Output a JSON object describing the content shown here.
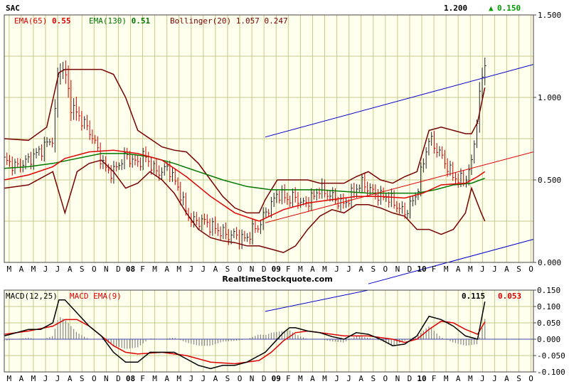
{
  "colors": {
    "panel_bg": "#FFFFEE",
    "grid": "#C8C88A",
    "border": "#444444",
    "price_bar": "#222222",
    "price_bar_down": "#CC0000",
    "ema65": "#DD0000",
    "ema130": "#007700",
    "bollinger": "#770000",
    "trend": "#0000CC",
    "macd_line": "#000000",
    "macd_signal": "#DD0000",
    "hist": "#888888",
    "up_green": "#009900"
  },
  "chart_data": [
    {
      "type": "line",
      "panel": "price",
      "ticker": "SAC",
      "last_price": "1.200",
      "change": "0.150",
      "change_direction": "up",
      "indicators": {
        "ema65": {
          "label": "EMA(65)",
          "value": "0.55"
        },
        "ema130": {
          "label": "EMA(130)",
          "value": "0.51"
        },
        "bollinger": {
          "label": "Bollinger(20)",
          "upper": "1.057",
          "lower": "0.247"
        }
      },
      "x_tick_labels": [
        "M",
        "A",
        "M",
        "J",
        "J",
        "A",
        "S",
        "O",
        "N",
        "D",
        "08",
        "F",
        "M",
        "A",
        "M",
        "J",
        "J",
        "A",
        "S",
        "O",
        "N",
        "D",
        "09",
        "F",
        "M",
        "A",
        "M",
        "J",
        "J",
        "A",
        "S",
        "O",
        "N",
        "D",
        "10",
        "F",
        "M",
        "A",
        "M",
        "J",
        "J",
        "A",
        "S",
        "O"
      ],
      "x_tick_bold": [
        "08",
        "09",
        "10"
      ],
      "y_ticks": [
        1.5,
        1.0,
        0.5,
        0.0
      ],
      "y_tick_labels": [
        "1.500",
        "1.000",
        "0.500",
        "0.000"
      ],
      "ylim": [
        0,
        1.5
      ],
      "x_range_months": [
        0,
        43.6
      ],
      "close_series": {
        "name": "Price",
        "points": [
          [
            0,
            0.62
          ],
          [
            0.5,
            0.6
          ],
          [
            1,
            0.58
          ],
          [
            1.5,
            0.6
          ],
          [
            2,
            0.62
          ],
          [
            2.5,
            0.65
          ],
          [
            3,
            0.68
          ],
          [
            3.5,
            0.72
          ],
          [
            4,
            0.75
          ],
          [
            4.5,
            1.2
          ],
          [
            5,
            1.15
          ],
          [
            5.5,
            0.95
          ],
          [
            6,
            0.9
          ],
          [
            6.5,
            0.85
          ],
          [
            7,
            0.8
          ],
          [
            7.5,
            0.72
          ],
          [
            8,
            0.62
          ],
          [
            8.5,
            0.55
          ],
          [
            9,
            0.55
          ],
          [
            9.5,
            0.6
          ],
          [
            10,
            0.65
          ],
          [
            10.5,
            0.62
          ],
          [
            11,
            0.6
          ],
          [
            11.5,
            0.65
          ],
          [
            12,
            0.6
          ],
          [
            12.5,
            0.55
          ],
          [
            13,
            0.55
          ],
          [
            13.5,
            0.58
          ],
          [
            14,
            0.5
          ],
          [
            14.5,
            0.42
          ],
          [
            15,
            0.3
          ],
          [
            15.5,
            0.25
          ],
          [
            16,
            0.25
          ],
          [
            16.5,
            0.25
          ],
          [
            17,
            0.22
          ],
          [
            17.5,
            0.2
          ],
          [
            18,
            0.18
          ],
          [
            18.5,
            0.16
          ],
          [
            19,
            0.17
          ],
          [
            19.5,
            0.14
          ],
          [
            20,
            0.15
          ],
          [
            20.5,
            0.2
          ],
          [
            21,
            0.22
          ],
          [
            21.5,
            0.3
          ],
          [
            22,
            0.35
          ],
          [
            22.5,
            0.42
          ],
          [
            23,
            0.4
          ],
          [
            23.5,
            0.38
          ],
          [
            24,
            0.4
          ],
          [
            24.5,
            0.35
          ],
          [
            25,
            0.37
          ],
          [
            25.5,
            0.4
          ],
          [
            26,
            0.45
          ],
          [
            26.5,
            0.42
          ],
          [
            27,
            0.4
          ],
          [
            27.5,
            0.37
          ],
          [
            28,
            0.35
          ],
          [
            28.5,
            0.4
          ],
          [
            29,
            0.45
          ],
          [
            29.5,
            0.48
          ],
          [
            30,
            0.45
          ],
          [
            30.5,
            0.42
          ],
          [
            31,
            0.4
          ],
          [
            31.5,
            0.4
          ],
          [
            32,
            0.37
          ],
          [
            32.5,
            0.33
          ],
          [
            33,
            0.3
          ],
          [
            33.5,
            0.35
          ],
          [
            34,
            0.42
          ],
          [
            34.5,
            0.6
          ],
          [
            35,
            0.75
          ],
          [
            35.5,
            0.7
          ],
          [
            36,
            0.65
          ],
          [
            36.5,
            0.58
          ],
          [
            37,
            0.52
          ],
          [
            37.5,
            0.5
          ],
          [
            38,
            0.5
          ],
          [
            38.5,
            0.6
          ],
          [
            39,
            0.9
          ],
          [
            39.3,
            1.1
          ],
          [
            39.6,
            1.2
          ]
        ]
      },
      "ema65_points": [
        [
          0,
          0.5
        ],
        [
          2,
          0.53
        ],
        [
          4,
          0.58
        ],
        [
          5,
          0.63
        ],
        [
          7,
          0.67
        ],
        [
          9,
          0.68
        ],
        [
          11,
          0.66
        ],
        [
          13,
          0.62
        ],
        [
          15,
          0.52
        ],
        [
          17,
          0.4
        ],
        [
          19,
          0.3
        ],
        [
          21,
          0.25
        ],
        [
          23,
          0.32
        ],
        [
          25,
          0.36
        ],
        [
          27,
          0.38
        ],
        [
          29,
          0.4
        ],
        [
          31,
          0.4
        ],
        [
          33,
          0.39
        ],
        [
          34.5,
          0.42
        ],
        [
          36,
          0.47
        ],
        [
          38,
          0.48
        ],
        [
          39,
          0.52
        ],
        [
          39.6,
          0.55
        ]
      ],
      "ema130_points": [
        [
          0,
          0.57
        ],
        [
          2,
          0.58
        ],
        [
          4,
          0.6
        ],
        [
          6,
          0.63
        ],
        [
          8,
          0.66
        ],
        [
          10,
          0.66
        ],
        [
          12,
          0.64
        ],
        [
          14,
          0.6
        ],
        [
          16,
          0.55
        ],
        [
          18,
          0.5
        ],
        [
          20,
          0.46
        ],
        [
          22,
          0.44
        ],
        [
          24,
          0.44
        ],
        [
          26,
          0.44
        ],
        [
          28,
          0.43
        ],
        [
          30,
          0.42
        ],
        [
          32,
          0.42
        ],
        [
          34,
          0.42
        ],
        [
          35.5,
          0.44
        ],
        [
          37,
          0.47
        ],
        [
          38.5,
          0.48
        ],
        [
          39.6,
          0.51
        ]
      ],
      "bb_upper_points": [
        [
          0,
          0.75
        ],
        [
          2,
          0.74
        ],
        [
          3.5,
          0.82
        ],
        [
          4.5,
          1.15
        ],
        [
          5,
          1.17
        ],
        [
          7,
          1.17
        ],
        [
          8,
          1.17
        ],
        [
          9,
          1.14
        ],
        [
          10,
          1.0
        ],
        [
          11,
          0.8
        ],
        [
          12,
          0.75
        ],
        [
          13,
          0.7
        ],
        [
          14,
          0.68
        ],
        [
          15,
          0.67
        ],
        [
          16,
          0.6
        ],
        [
          17,
          0.5
        ],
        [
          18,
          0.4
        ],
        [
          19,
          0.33
        ],
        [
          20,
          0.3
        ],
        [
          21,
          0.3
        ],
        [
          21.5,
          0.38
        ],
        [
          22.5,
          0.5
        ],
        [
          23.5,
          0.5
        ],
        [
          25,
          0.5
        ],
        [
          26,
          0.48
        ],
        [
          27,
          0.48
        ],
        [
          28,
          0.48
        ],
        [
          29,
          0.52
        ],
        [
          30,
          0.55
        ],
        [
          31,
          0.5
        ],
        [
          32,
          0.48
        ],
        [
          33,
          0.52
        ],
        [
          34,
          0.55
        ],
        [
          35,
          0.8
        ],
        [
          36,
          0.82
        ],
        [
          37,
          0.8
        ],
        [
          38,
          0.78
        ],
        [
          38.5,
          0.78
        ],
        [
          39,
          0.85
        ],
        [
          39.6,
          1.06
        ]
      ],
      "bb_lower_points": [
        [
          0,
          0.45
        ],
        [
          2,
          0.47
        ],
        [
          4,
          0.55
        ],
        [
          5,
          0.3
        ],
        [
          6,
          0.55
        ],
        [
          7,
          0.6
        ],
        [
          8,
          0.62
        ],
        [
          9,
          0.55
        ],
        [
          10,
          0.45
        ],
        [
          11,
          0.48
        ],
        [
          12,
          0.55
        ],
        [
          13,
          0.5
        ],
        [
          14,
          0.42
        ],
        [
          15,
          0.3
        ],
        [
          16,
          0.2
        ],
        [
          17,
          0.15
        ],
        [
          18,
          0.13
        ],
        [
          19,
          0.12
        ],
        [
          20,
          0.1
        ],
        [
          21,
          0.1
        ],
        [
          22,
          0.08
        ],
        [
          23,
          0.06
        ],
        [
          24,
          0.1
        ],
        [
          25,
          0.2
        ],
        [
          26,
          0.28
        ],
        [
          27,
          0.32
        ],
        [
          28,
          0.3
        ],
        [
          29,
          0.35
        ],
        [
          30,
          0.35
        ],
        [
          31,
          0.33
        ],
        [
          32,
          0.3
        ],
        [
          33,
          0.28
        ],
        [
          34,
          0.2
        ],
        [
          35,
          0.2
        ],
        [
          36,
          0.17
        ],
        [
          37,
          0.2
        ],
        [
          38,
          0.3
        ],
        [
          38.5,
          0.45
        ],
        [
          39.3,
          0.3
        ],
        [
          39.6,
          0.25
        ]
      ],
      "trend_upper": [
        [
          21.5,
          0.76
        ],
        [
          43.6,
          1.2
        ]
      ],
      "trend_middle": [
        [
          21.5,
          0.24
        ],
        [
          43.6,
          0.67
        ]
      ],
      "trend_lower": [
        [
          30,
          -0.13
        ],
        [
          43.6,
          0.14
        ]
      ],
      "watermark": "RealtimeStockquote.com"
    },
    {
      "type": "line",
      "panel": "macd",
      "title": "MACD(12,25)",
      "signal_label": "MACD EMA(9)",
      "macd_value": "0.115",
      "signal_value": "0.053",
      "y_ticks": [
        0.15,
        0.1,
        0.05,
        0.0,
        -0.05,
        -0.1
      ],
      "y_tick_labels": [
        "0.150",
        "0.100",
        "0.050",
        "0.000",
        "-0.050",
        "-0.100"
      ],
      "ylim": [
        -0.1,
        0.15
      ],
      "macd_points": [
        [
          0,
          0.01
        ],
        [
          1,
          0.02
        ],
        [
          2,
          0.03
        ],
        [
          3,
          0.03
        ],
        [
          4,
          0.05
        ],
        [
          4.5,
          0.12
        ],
        [
          5,
          0.12
        ],
        [
          6,
          0.08
        ],
        [
          7,
          0.04
        ],
        [
          8,
          0.01
        ],
        [
          9,
          -0.04
        ],
        [
          10,
          -0.07
        ],
        [
          11,
          -0.07
        ],
        [
          12,
          -0.04
        ],
        [
          13,
          -0.04
        ],
        [
          14,
          -0.04
        ],
        [
          15,
          -0.06
        ],
        [
          16,
          -0.08
        ],
        [
          17,
          -0.09
        ],
        [
          18,
          -0.08
        ],
        [
          19,
          -0.08
        ],
        [
          20,
          -0.07
        ],
        [
          21,
          -0.05
        ],
        [
          21.5,
          -0.04
        ],
        [
          22,
          -0.02
        ],
        [
          23,
          0.02
        ],
        [
          23.5,
          0.035
        ],
        [
          24,
          0.035
        ],
        [
          25,
          0.025
        ],
        [
          26,
          0.02
        ],
        [
          27,
          0.008
        ],
        [
          28,
          0.0
        ],
        [
          29,
          0.02
        ],
        [
          30,
          0.015
        ],
        [
          31,
          0.0
        ],
        [
          32,
          -0.02
        ],
        [
          33,
          -0.015
        ],
        [
          34,
          0.01
        ],
        [
          35,
          0.07
        ],
        [
          36,
          0.06
        ],
        [
          37,
          0.04
        ],
        [
          38,
          0.01
        ],
        [
          39,
          0.0
        ],
        [
          39.6,
          0.115
        ]
      ],
      "signal_points": [
        [
          0,
          0.015
        ],
        [
          2,
          0.025
        ],
        [
          4,
          0.04
        ],
        [
          5,
          0.06
        ],
        [
          6,
          0.06
        ],
        [
          7,
          0.04
        ],
        [
          8,
          0.01
        ],
        [
          9,
          -0.02
        ],
        [
          10,
          -0.04
        ],
        [
          11,
          -0.045
        ],
        [
          13,
          -0.04
        ],
        [
          15,
          -0.05
        ],
        [
          17,
          -0.07
        ],
        [
          19,
          -0.075
        ],
        [
          21,
          -0.065
        ],
        [
          22,
          -0.04
        ],
        [
          23,
          -0.005
        ],
        [
          24,
          0.02
        ],
        [
          25,
          0.025
        ],
        [
          26,
          0.02
        ],
        [
          28,
          0.01
        ],
        [
          30,
          0.01
        ],
        [
          32,
          0.0
        ],
        [
          33,
          -0.01
        ],
        [
          34,
          0.0
        ],
        [
          35,
          0.03
        ],
        [
          36,
          0.055
        ],
        [
          37,
          0.05
        ],
        [
          38,
          0.03
        ],
        [
          39,
          0.015
        ],
        [
          39.6,
          0.053
        ]
      ],
      "trend_line": [
        [
          21.5,
          0.085
        ],
        [
          30,
          0.15
        ]
      ]
    }
  ]
}
